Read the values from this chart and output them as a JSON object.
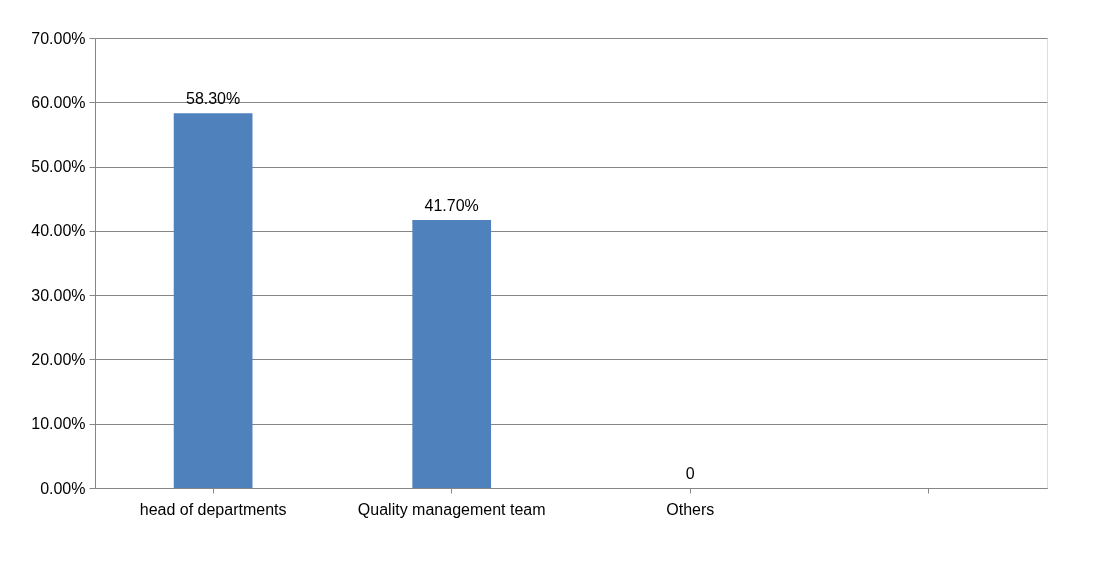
{
  "chart_data": {
    "type": "bar",
    "categories": [
      "head of departments",
      "Quality management team",
      "Others",
      null
    ],
    "values": [
      58.3,
      41.7,
      0,
      null
    ],
    "value_labels": [
      "58.30%",
      "41.70%",
      "0",
      null
    ],
    "color": "#4f81bd",
    "ylim": [
      0,
      70
    ],
    "yticks": [
      {
        "value": 0,
        "label": "0.00%"
      },
      {
        "value": 10,
        "label": "10.00%"
      },
      {
        "value": 20,
        "label": "20.00%"
      },
      {
        "value": 30,
        "label": "30.00%"
      },
      {
        "value": 40,
        "label": "40.00%"
      },
      {
        "value": 50,
        "label": "50.00%"
      },
      {
        "value": 60,
        "label": "60.00%"
      },
      {
        "value": 70,
        "label": "70.00%"
      }
    ],
    "grid": "y"
  }
}
